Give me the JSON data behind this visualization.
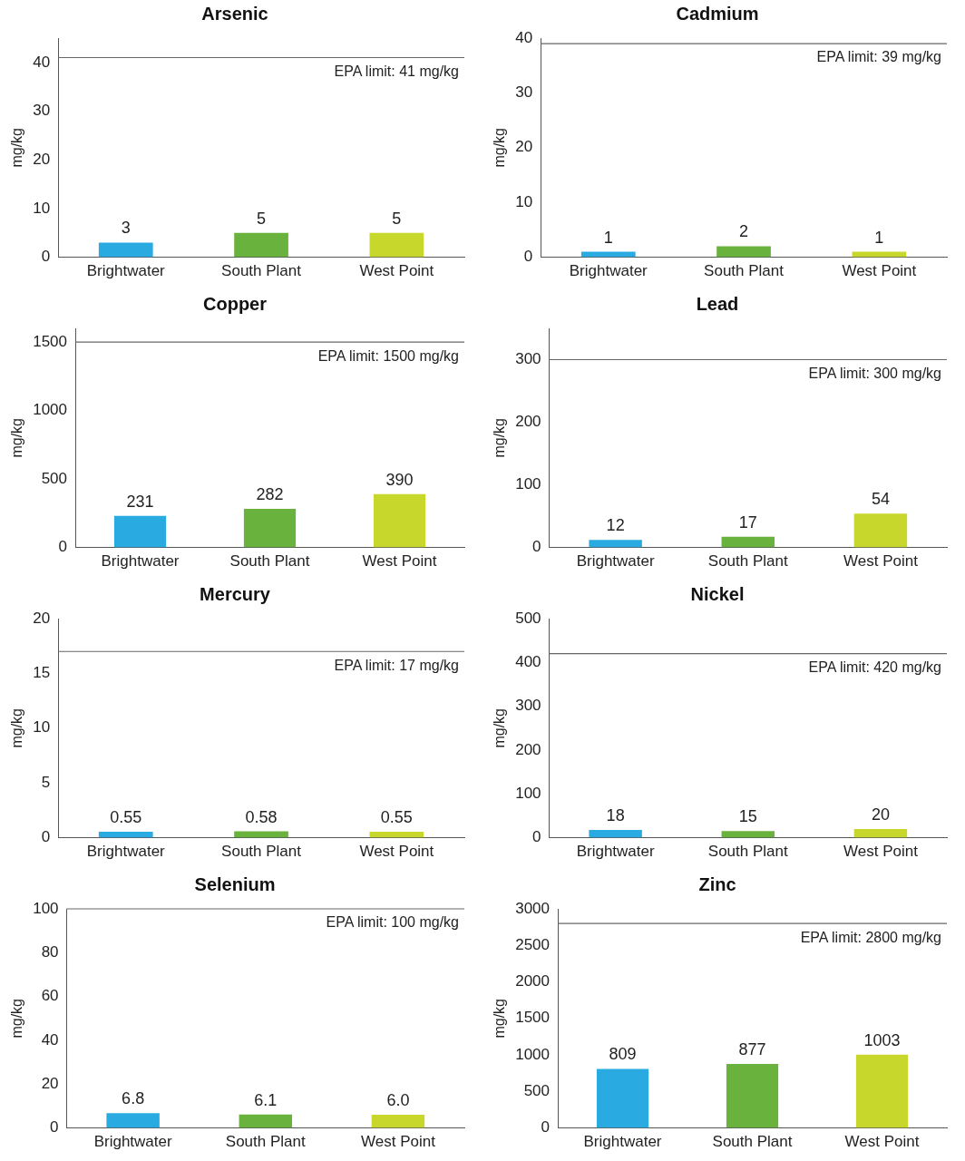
{
  "chart_data": [
    {
      "type": "bar",
      "title": "Arsenic",
      "ylabel": "mg/kg",
      "categories": [
        "Brightwater",
        "South Plant",
        "West Point"
      ],
      "values": [
        3,
        5,
        5
      ],
      "colors": [
        "#29abe2",
        "#6ab23e",
        "#c8d72b"
      ],
      "ylim": [
        0,
        45
      ],
      "yticks": [
        0,
        10,
        20,
        30,
        40
      ],
      "grid": false,
      "legend": false,
      "data_labels": true,
      "ref_lines": [
        {
          "axis": "y",
          "value": 41,
          "label": "EPA limit: 41 mg/kg"
        }
      ]
    },
    {
      "type": "bar",
      "title": "Cadmium",
      "ylabel": "mg/kg",
      "categories": [
        "Brightwater",
        "South Plant",
        "West Point"
      ],
      "values": [
        1,
        2,
        1
      ],
      "colors": [
        "#29abe2",
        "#6ab23e",
        "#c8d72b"
      ],
      "ylim": [
        0,
        40
      ],
      "yticks": [
        0,
        10,
        20,
        30,
        40
      ],
      "grid": false,
      "legend": false,
      "data_labels": true,
      "ref_lines": [
        {
          "axis": "y",
          "value": 39,
          "label": "EPA limit: 39 mg/kg"
        }
      ]
    },
    {
      "type": "bar",
      "title": "Copper",
      "ylabel": "mg/kg",
      "categories": [
        "Brightwater",
        "South Plant",
        "West Point"
      ],
      "values": [
        231,
        282,
        390
      ],
      "colors": [
        "#29abe2",
        "#6ab23e",
        "#c8d72b"
      ],
      "ylim": [
        0,
        1600
      ],
      "yticks": [
        0,
        500,
        1000,
        1500
      ],
      "grid": false,
      "legend": false,
      "data_labels": true,
      "ref_lines": [
        {
          "axis": "y",
          "value": 1500,
          "label": "EPA limit: 1500 mg/kg"
        }
      ]
    },
    {
      "type": "bar",
      "title": "Lead",
      "ylabel": "mg/kg",
      "categories": [
        "Brightwater",
        "South Plant",
        "West Point"
      ],
      "values": [
        12,
        17,
        54
      ],
      "colors": [
        "#29abe2",
        "#6ab23e",
        "#c8d72b"
      ],
      "ylim": [
        0,
        350
      ],
      "yticks": [
        0,
        100,
        200,
        300
      ],
      "grid": false,
      "legend": false,
      "data_labels": true,
      "ref_lines": [
        {
          "axis": "y",
          "value": 300,
          "label": "EPA limit: 300 mg/kg"
        }
      ]
    },
    {
      "type": "bar",
      "title": "Mercury",
      "ylabel": "mg/kg",
      "categories": [
        "Brightwater",
        "South Plant",
        "West Point"
      ],
      "values": [
        0.55,
        0.58,
        0.55
      ],
      "colors": [
        "#29abe2",
        "#6ab23e",
        "#c8d72b"
      ],
      "ylim": [
        0,
        20
      ],
      "yticks": [
        0,
        5,
        10,
        15,
        20
      ],
      "grid": false,
      "legend": false,
      "data_labels": true,
      "ref_lines": [
        {
          "axis": "y",
          "value": 17,
          "label": "EPA limit: 17 mg/kg"
        }
      ]
    },
    {
      "type": "bar",
      "title": "Nickel",
      "ylabel": "mg/kg",
      "categories": [
        "Brightwater",
        "South Plant",
        "West Point"
      ],
      "values": [
        18,
        15,
        20
      ],
      "colors": [
        "#29abe2",
        "#6ab23e",
        "#c8d72b"
      ],
      "ylim": [
        0,
        500
      ],
      "yticks": [
        0,
        100,
        200,
        300,
        400,
        500
      ],
      "grid": false,
      "legend": false,
      "data_labels": true,
      "ref_lines": [
        {
          "axis": "y",
          "value": 420,
          "label": "EPA limit: 420 mg/kg"
        }
      ]
    },
    {
      "type": "bar",
      "title": "Selenium",
      "ylabel": "mg/kg",
      "categories": [
        "Brightwater",
        "South Plant",
        "West Point"
      ],
      "values": [
        6.8,
        6.1,
        6.0
      ],
      "value_labels": [
        "6.8",
        "6.1",
        "6.0"
      ],
      "colors": [
        "#29abe2",
        "#6ab23e",
        "#c8d72b"
      ],
      "ylim": [
        0,
        100
      ],
      "yticks": [
        0,
        20,
        40,
        60,
        80,
        100
      ],
      "grid": false,
      "legend": false,
      "ref_lines": [
        {
          "axis": "y",
          "value": 100,
          "label": "EPA limit: 100 mg/kg"
        }
      ]
    },
    {
      "type": "bar",
      "title": "Zinc",
      "ylabel": "mg/kg",
      "categories": [
        "Brightwater",
        "South Plant",
        "West Point"
      ],
      "values": [
        809,
        877,
        1003
      ],
      "colors": [
        "#29abe2",
        "#6ab23e",
        "#c8d72b"
      ],
      "ylim": [
        0,
        3000
      ],
      "yticks": [
        0,
        500,
        1000,
        1500,
        2000,
        2500,
        3000
      ],
      "grid": false,
      "legend": false,
      "data_labels": true,
      "ref_lines": [
        {
          "axis": "y",
          "value": 2800,
          "label": "EPA limit: 2800 mg/kg"
        }
      ]
    }
  ]
}
